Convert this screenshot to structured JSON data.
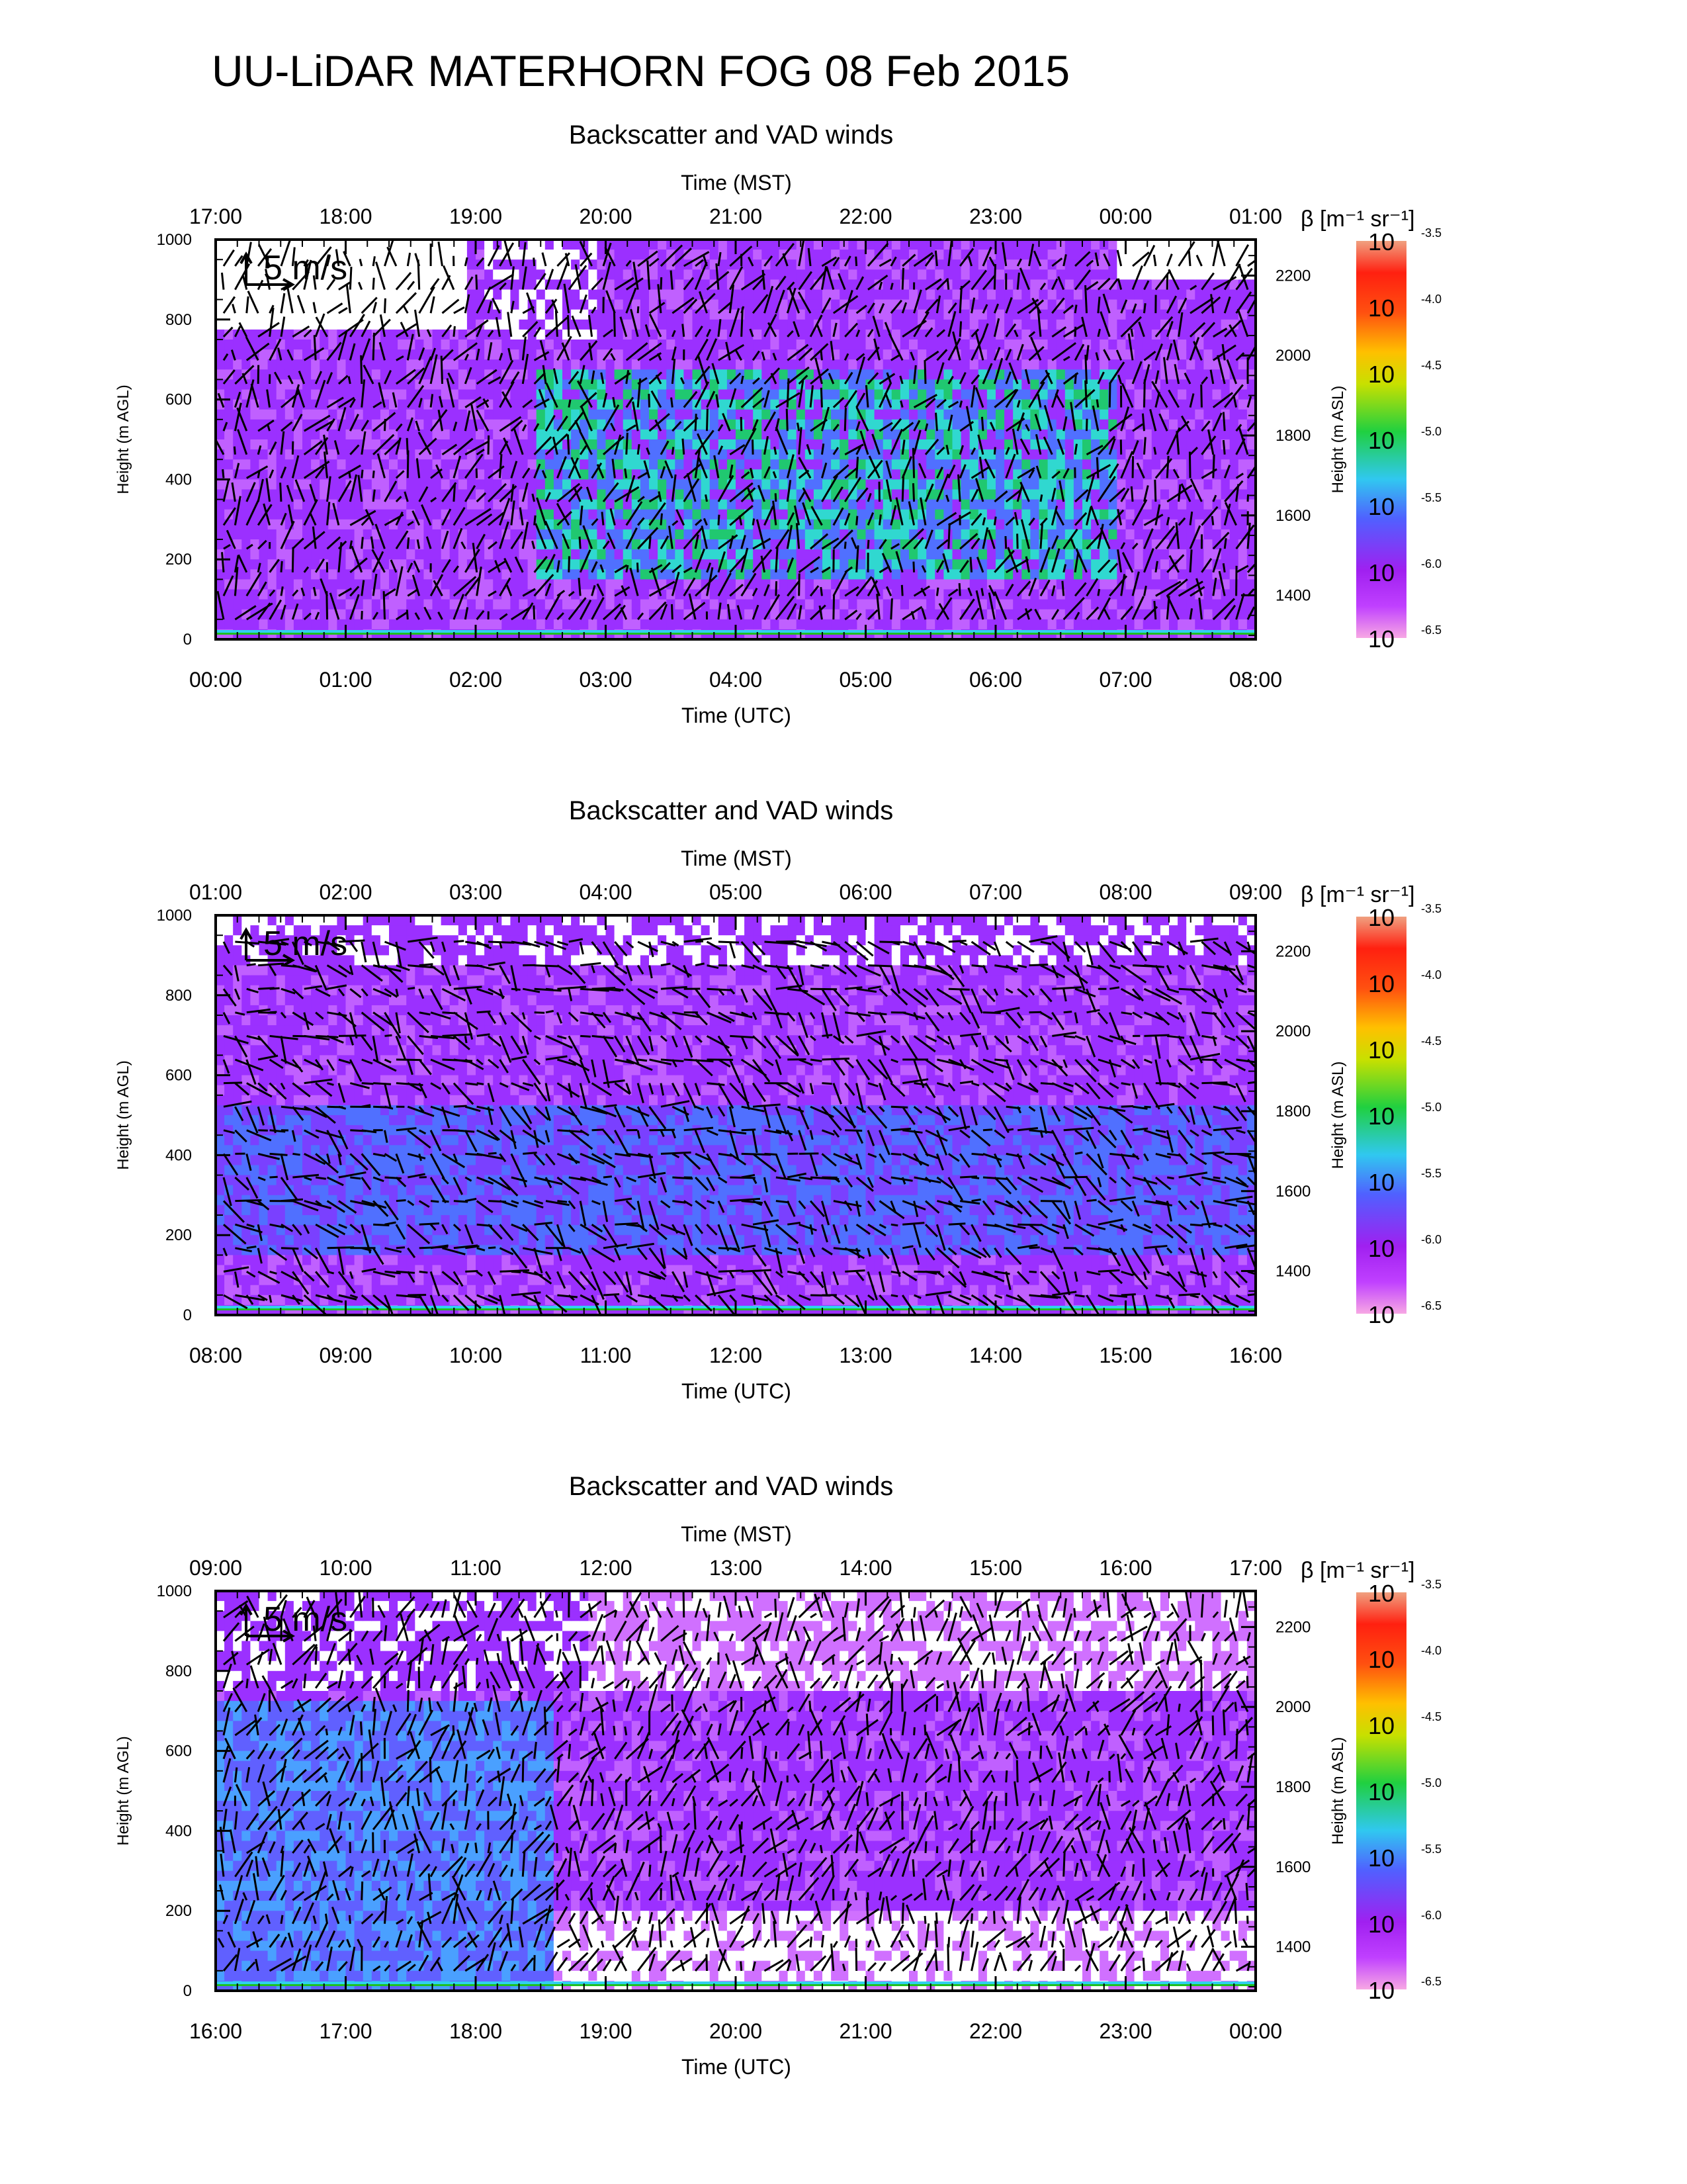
{
  "main_title": "UU-LiDAR MATERHORN FOG  08 Feb 2015",
  "chart_data": [
    {
      "type": "heatmap",
      "title": "Backscatter and VAD winds",
      "top_axis_label": "Time (MST)",
      "top_ticks": [
        "17:00",
        "18:00",
        "19:00",
        "20:00",
        "21:00",
        "22:00",
        "23:00",
        "00:00",
        "01:00"
      ],
      "bottom_axis_label": "Time (UTC)",
      "bottom_ticks": [
        "00:00",
        "01:00",
        "02:00",
        "03:00",
        "04:00",
        "05:00",
        "06:00",
        "07:00",
        "08:00"
      ],
      "ylabel_left": "Height (m AGL)",
      "yticks_left": [
        0,
        200,
        400,
        600,
        800,
        1000
      ],
      "ylim_left": [
        0,
        1000
      ],
      "ylabel_right": "Height (m ASL)",
      "yticks_right": [
        1400,
        1600,
        1800,
        2000,
        2200
      ],
      "ylim_right": [
        1290,
        2290
      ],
      "wind_scale_label": "5 m/s",
      "colorbar_label": "β [m⁻¹ sr⁻¹]",
      "colorbar_exponents": [
        "-3.5",
        "-4.0",
        "-4.5",
        "-5.0",
        "-5.5",
        "-6.0",
        "-6.5"
      ],
      "colorbar_base": "10",
      "log_scale": true
    },
    {
      "type": "heatmap",
      "title": "Backscatter and VAD winds",
      "top_axis_label": "Time (MST)",
      "top_ticks": [
        "01:00",
        "02:00",
        "03:00",
        "04:00",
        "05:00",
        "06:00",
        "07:00",
        "08:00",
        "09:00"
      ],
      "bottom_axis_label": "Time (UTC)",
      "bottom_ticks": [
        "08:00",
        "09:00",
        "10:00",
        "11:00",
        "12:00",
        "13:00",
        "14:00",
        "15:00",
        "16:00"
      ],
      "ylabel_left": "Height (m AGL)",
      "yticks_left": [
        0,
        200,
        400,
        600,
        800,
        1000
      ],
      "ylim_left": [
        0,
        1000
      ],
      "ylabel_right": "Height (m ASL)",
      "yticks_right": [
        1400,
        1600,
        1800,
        2000,
        2200
      ],
      "ylim_right": [
        1290,
        2290
      ],
      "wind_scale_label": "5 m/s",
      "colorbar_label": "β [m⁻¹ sr⁻¹]",
      "colorbar_exponents": [
        "-3.5",
        "-4.0",
        "-4.5",
        "-5.0",
        "-5.5",
        "-6.0",
        "-6.5"
      ],
      "colorbar_base": "10",
      "log_scale": true
    },
    {
      "type": "heatmap",
      "title": "Backscatter and VAD winds",
      "top_axis_label": "Time (MST)",
      "top_ticks": [
        "09:00",
        "10:00",
        "11:00",
        "12:00",
        "13:00",
        "14:00",
        "15:00",
        "16:00",
        "17:00"
      ],
      "bottom_axis_label": "Time (UTC)",
      "bottom_ticks": [
        "16:00",
        "17:00",
        "18:00",
        "19:00",
        "20:00",
        "21:00",
        "22:00",
        "23:00",
        "00:00"
      ],
      "ylabel_left": "Height (m AGL)",
      "yticks_left": [
        0,
        200,
        400,
        600,
        800,
        1000
      ],
      "ylim_left": [
        0,
        1000
      ],
      "ylabel_right": "Height (m ASL)",
      "yticks_right": [
        1400,
        1600,
        1800,
        2000,
        2200
      ],
      "ylim_right": [
        1290,
        2290
      ],
      "wind_scale_label": "5 m/s",
      "colorbar_label": "β [m⁻¹ sr⁻¹]",
      "colorbar_exponents": [
        "-3.5",
        "-4.0",
        "-4.5",
        "-5.0",
        "-5.5",
        "-6.0",
        "-6.5"
      ],
      "colorbar_base": "10",
      "log_scale": true
    }
  ],
  "colors": {
    "colorbar_stops": [
      "#f7a8e4",
      "#a020f0",
      "#4060ff",
      "#30d0f0",
      "#20d020",
      "#d0e000",
      "#ffa000",
      "#ff2010",
      "#f0a080"
    ],
    "bg_violet": "#9b30ff",
    "white_gap": "#ffffff",
    "arrow": "#000000"
  }
}
